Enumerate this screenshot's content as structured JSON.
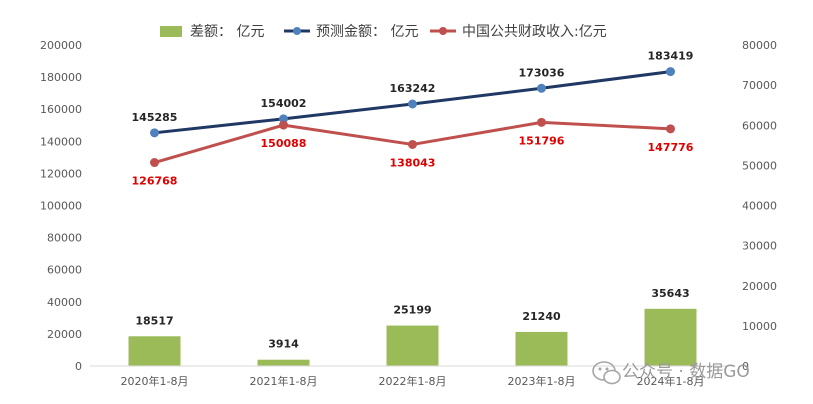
{
  "chart_data": {
    "type": "bar+line",
    "categories": [
      "2020年1-8月",
      "2021年1-8月",
      "2022年1-8月",
      "2023年1-8月",
      "2024年1-8月"
    ],
    "series": [
      {
        "name": "差额：  亿元",
        "type": "bar",
        "axis": "left",
        "color": "#9bbb59",
        "values": [
          18517,
          3914,
          25199,
          21240,
          35643
        ]
      },
      {
        "name": "预测金额：  亿元",
        "type": "line",
        "axis": "left",
        "color": "#1f3864",
        "values": [
          145285,
          154002,
          163242,
          173036,
          183419
        ]
      },
      {
        "name": "中国公共财政收入:亿元",
        "type": "line",
        "axis": "right",
        "color": "#c0504d",
        "values": [
          126768,
          150088,
          138043,
          151796,
          147776
        ]
      }
    ],
    "y_left": {
      "min": 0,
      "max": 200000,
      "ticks": [
        0,
        20000,
        40000,
        60000,
        80000,
        100000,
        120000,
        140000,
        160000,
        180000,
        200000
      ]
    },
    "y_right_ticks": [
      "0",
      "10000",
      "20000",
      "30000",
      "40000",
      "50000",
      "60000",
      "70000",
      "80000"
    ],
    "legend_position": "top",
    "grid": false
  },
  "watermark": "公众号 · 数据GO"
}
